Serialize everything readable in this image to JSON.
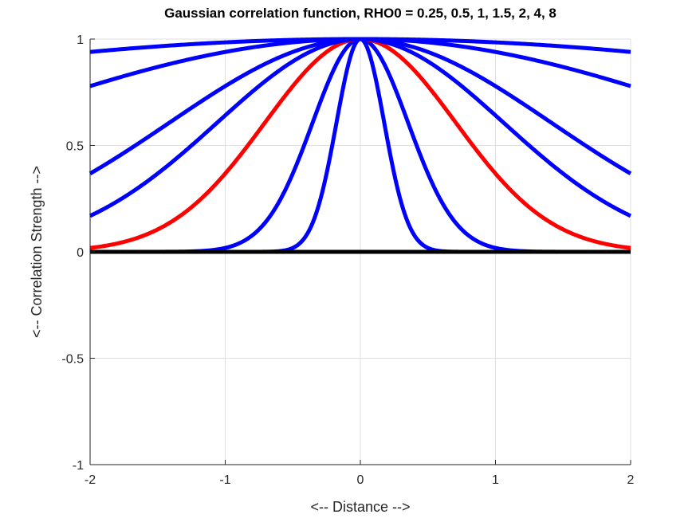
{
  "chart_data": {
    "type": "line",
    "title": "Gaussian correlation function, RHO0 = 0.25, 0.5, 1, 1.5, 2, 4, 8",
    "xlabel": "<-- Distance -->",
    "ylabel": "<-- Correlation Strength -->",
    "xlim": [
      -2,
      2
    ],
    "ylim": [
      -1,
      1
    ],
    "xticks": [
      -2,
      -1,
      0,
      1,
      2
    ],
    "xtick_labels": [
      "-2",
      "-1",
      "0",
      "1",
      "2"
    ],
    "yticks": [
      -1,
      -0.5,
      0,
      0.5,
      1
    ],
    "ytick_labels": [
      "-1",
      "-0.5",
      "0",
      "0.5",
      "1"
    ],
    "grid": true,
    "function": "y = exp(-(x/rho0)^2)",
    "series": [
      {
        "name": "rho0 = 0.25",
        "rho0": 0.25,
        "color": "#0000ff"
      },
      {
        "name": "rho0 = 0.5",
        "rho0": 0.5,
        "color": "#0000ff"
      },
      {
        "name": "rho0 = 1",
        "rho0": 1,
        "color": "#ff0000"
      },
      {
        "name": "rho0 = 1.5",
        "rho0": 1.5,
        "color": "#0000ff"
      },
      {
        "name": "rho0 = 2",
        "rho0": 2,
        "color": "#0000ff"
      },
      {
        "name": "rho0 = 4",
        "rho0": 4,
        "color": "#0000ff"
      },
      {
        "name": "rho0 = 8",
        "rho0": 8,
        "color": "#0000ff"
      },
      {
        "name": "zero line",
        "constant": 0,
        "color": "#000000"
      }
    ]
  }
}
